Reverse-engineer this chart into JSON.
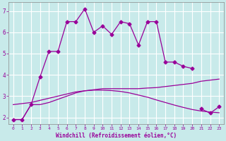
{
  "xlabel": "Windchill (Refroidissement éolien,°C)",
  "bg_color": "#c8eaea",
  "grid_color": "#b0d0d0",
  "line_color": "#990099",
  "x": [
    0,
    1,
    2,
    3,
    4,
    5,
    6,
    7,
    8,
    9,
    10,
    11,
    12,
    13,
    14,
    15,
    16,
    17,
    18,
    19,
    20,
    21,
    22,
    23
  ],
  "line1": [
    1.9,
    1.9,
    2.6,
    3.9,
    5.1,
    5.1,
    6.5,
    6.5,
    7.1,
    6.0,
    6.3,
    5.9,
    6.5,
    6.4,
    5.4,
    6.5,
    6.5,
    4.6,
    4.6,
    4.4,
    4.3,
    null,
    null,
    null
  ],
  "line2": [
    1.9,
    1.9,
    2.6,
    2.6,
    2.7,
    2.85,
    3.0,
    3.15,
    3.25,
    3.3,
    3.35,
    3.35,
    3.35,
    3.35,
    3.35,
    3.38,
    3.4,
    3.45,
    3.5,
    3.55,
    3.6,
    3.7,
    3.75,
    3.8
  ],
  "line3": [
    2.6,
    2.65,
    2.7,
    2.8,
    2.9,
    3.0,
    3.1,
    3.2,
    3.25,
    3.28,
    3.28,
    3.26,
    3.22,
    3.15,
    3.05,
    2.95,
    2.82,
    2.7,
    2.58,
    2.47,
    2.37,
    2.3,
    2.25,
    2.22
  ],
  "line4": [
    null,
    null,
    null,
    null,
    null,
    null,
    null,
    null,
    null,
    null,
    null,
    null,
    null,
    null,
    null,
    null,
    null,
    null,
    null,
    null,
    null,
    2.4,
    2.2,
    2.5
  ],
  "ylim": [
    1.7,
    7.4
  ],
  "xlim": [
    -0.5,
    23.5
  ],
  "yticks": [
    2,
    3,
    4,
    5,
    6,
    7
  ],
  "xticks": [
    0,
    1,
    2,
    3,
    4,
    5,
    6,
    7,
    8,
    9,
    10,
    11,
    12,
    13,
    14,
    15,
    16,
    17,
    18,
    19,
    20,
    21,
    22,
    23
  ]
}
